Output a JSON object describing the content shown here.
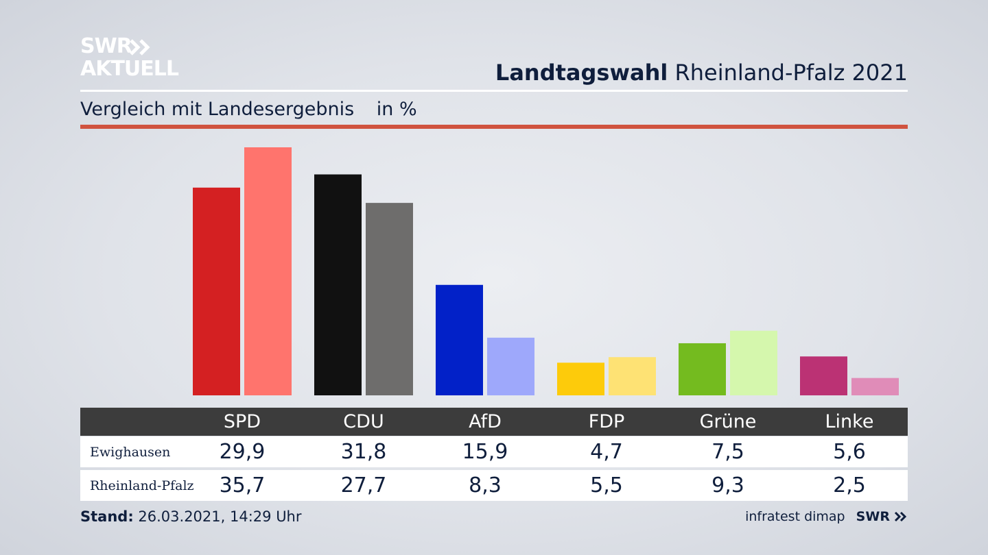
{
  "logo": {
    "line1": "SWR",
    "line2": "AKTUELL"
  },
  "header": {
    "title_bold": "Landtagswahl",
    "title_rest": "Rheinland-Pfalz 2021"
  },
  "subtitle": {
    "text": "Vergleich mit Landesergebnis",
    "unit": "in %"
  },
  "colors": {
    "accent_rule": "#d0533f",
    "table_header": "#3c3c3c"
  },
  "table": {
    "rows": [
      {
        "label": "Ewighausen",
        "values": [
          "29,9",
          "31,8",
          "15,9",
          "4,7",
          "7,5",
          "5,6"
        ]
      },
      {
        "label": "Rheinland-Pfalz",
        "values": [
          "35,7",
          "27,7",
          "8,3",
          "5,5",
          "9,3",
          "2,5"
        ]
      }
    ]
  },
  "chart_data": {
    "type": "bar",
    "categories": [
      "SPD",
      "CDU",
      "AfD",
      "FDP",
      "Grüne",
      "Linke"
    ],
    "series": [
      {
        "name": "Ewighausen",
        "values": [
          29.9,
          31.8,
          15.9,
          4.7,
          7.5,
          5.6
        ],
        "colors": [
          "#d42022",
          "#111111",
          "#0221c8",
          "#fdcb0b",
          "#74bb1f",
          "#bb3274"
        ]
      },
      {
        "name": "Rheinland-Pfalz",
        "values": [
          35.7,
          27.7,
          8.3,
          5.5,
          9.3,
          2.5
        ],
        "colors": [
          "#ff746d",
          "#6e6d6c",
          "#9ea8fb",
          "#fee274",
          "#d5f7ad",
          "#e08cb8"
        ]
      }
    ],
    "ylim": [
      0,
      35.7
    ],
    "grid": false,
    "legend": "table-below"
  },
  "footer": {
    "stand_label": "Stand:",
    "stand_value": "26.03.2021, 14:29 Uhr",
    "source": "infratest dimap",
    "brand": "SWR"
  }
}
